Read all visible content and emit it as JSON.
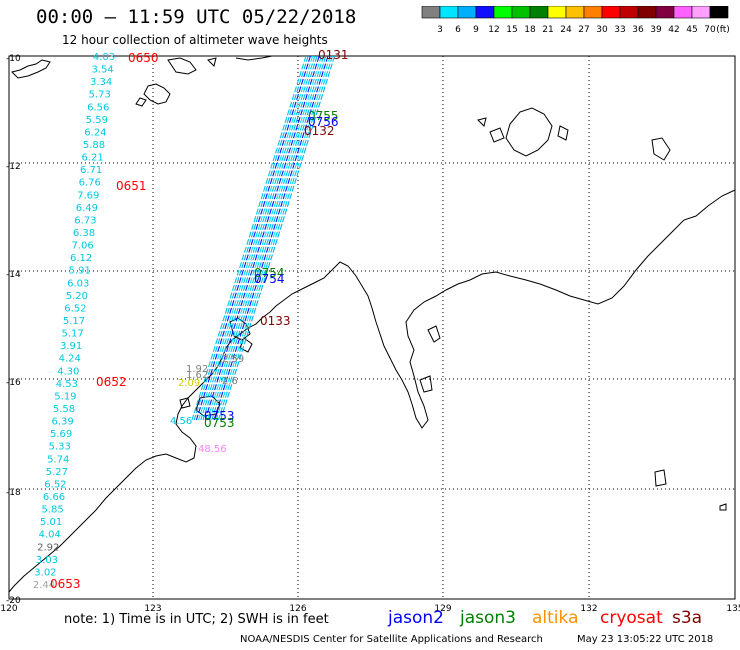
{
  "header": {
    "title": "00:00 – 11:59 UTC 05/22/2018",
    "subtitle": "12 hour collection of altimeter wave heights"
  },
  "colorbar": {
    "ticks": [
      "3",
      "6",
      "9",
      "12",
      "15",
      "18",
      "21",
      "24",
      "27",
      "30",
      "33",
      "36",
      "39",
      "42",
      "45",
      "70",
      "(ft)"
    ],
    "colors": [
      "#808080",
      "#00e5ff",
      "#00b0ff",
      "#1010ff",
      "#00ff00",
      "#00c000",
      "#008000",
      "#ffff00",
      "#ffc000",
      "#ff8000",
      "#ff0000",
      "#c00000",
      "#800000",
      "#800040",
      "#ff60ff",
      "#ffa0ff",
      "#000000"
    ]
  },
  "map": {
    "lat_labels": [
      "-10",
      "-12",
      "-14",
      "-16",
      "-18",
      "-20"
    ],
    "lon_labels": [
      "120",
      "123",
      "126",
      "129",
      "132",
      "135"
    ],
    "lat_range": [
      -20,
      -10
    ],
    "lon_range": [
      120,
      135
    ]
  },
  "tracks": {
    "west": {
      "color": "#00c8e0",
      "values": [
        "4.03",
        "3.54",
        "3.34",
        "5.73",
        "6.56",
        "5.59",
        "6.24",
        "5.88",
        "6.21",
        "6.71",
        "6.76",
        "7.69",
        "6.49",
        "6.73",
        "6.38",
        "7.06",
        "6.12",
        "5.91",
        "6.03",
        "5.20",
        "6.52",
        "5.17",
        "5.17",
        "3.91",
        "4.24",
        "4.30",
        "4.53",
        "5.19",
        "5.58",
        "6.39",
        "5.69",
        "5.33",
        "5.74",
        "5.27",
        "6.52",
        "6.66",
        "5.85",
        "5.01",
        "4.04",
        "2.92",
        "3.03",
        "3.02",
        "2.44"
      ]
    },
    "times": [
      {
        "label": "0650",
        "color": "#ff0000"
      },
      {
        "label": "0651",
        "color": "#ff0000"
      },
      {
        "label": "0652",
        "color": "#ff0000"
      },
      {
        "label": "0653",
        "color": "#ff0000"
      },
      {
        "label": "0131",
        "color": "#800000"
      },
      {
        "label": "0132",
        "color": "#800000"
      },
      {
        "label": "0133",
        "color": "#800000"
      },
      {
        "label": "0755",
        "color": "#008000"
      },
      {
        "label": "0756",
        "color": "#0000ff"
      },
      {
        "label": "0754",
        "color": "#008000"
      },
      {
        "label": "0754",
        "color": "#0000ff"
      },
      {
        "label": "0753",
        "color": "#0000ff"
      },
      {
        "label": "0753",
        "color": "#008000"
      }
    ],
    "misc": [
      {
        "label": "48.56",
        "color": "#ff80ff"
      },
      {
        "label": "1.92",
        "color": "#808080"
      },
      {
        "label": "1.62",
        "color": "#808080"
      },
      {
        "label": "2.09",
        "color": "#d0d000"
      },
      {
        "label": "2.6",
        "color": "#808080"
      },
      {
        "label": "4.56",
        "color": "#00c8e0"
      },
      {
        "label": "2.59",
        "color": "#808080"
      }
    ]
  },
  "note": "note:  1) Time is in UTC; 2) SWH is in feet",
  "legend": [
    {
      "label": "jason2",
      "color": "#0000ff"
    },
    {
      "label": "jason3",
      "color": "#008000"
    },
    {
      "label": "altika",
      "color": "#ff9000"
    },
    {
      "label": "cryosat",
      "color": "#ff0000"
    },
    {
      "label": "s3a",
      "color": "#800000"
    }
  ],
  "footer": {
    "credit": "NOAA/NESDIS Center for Satellite Applications and Research",
    "timestamp": "May 23 13:05:22 UTC 2018"
  }
}
